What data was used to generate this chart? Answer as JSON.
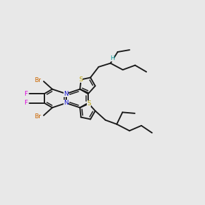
{
  "bg_color": "#e8e8e8",
  "bond_color": "#1a1a1a",
  "S_color": "#b8a000",
  "N_color": "#1010cc",
  "Br_color": "#cc6600",
  "F_color": "#dd00dd",
  "H_color": "#009999",
  "bond_lw": 1.4,
  "inner_lw": 1.1,
  "label_fs": 6.5,
  "figsize": [
    3.0,
    3.0
  ],
  "dpi": 100,
  "xlim": [
    0,
    10
  ],
  "ylim": [
    0,
    10
  ]
}
